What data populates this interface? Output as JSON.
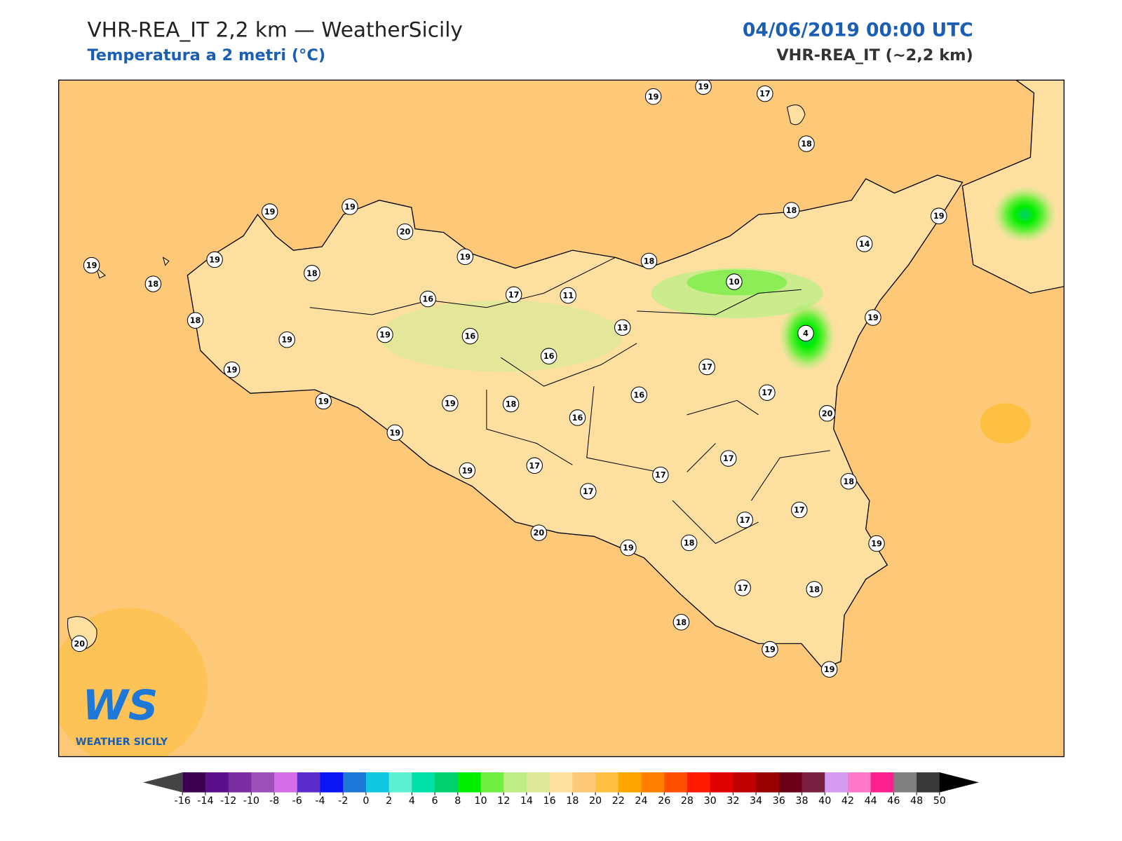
{
  "header": {
    "title": "VHR-REA_IT 2,2 km — WeatherSicily",
    "subtitle": "Temperatura a 2 metri (°C)",
    "datetime": "04/06/2019 00:00 UTC",
    "model": "VHR-REA_IT (~2,2 km)"
  },
  "logo": {
    "mark": "WS",
    "text": "WEATHER SICILY"
  },
  "stations": [
    19,
    19,
    17,
    18,
    19,
    19,
    20,
    19,
    19,
    19,
    18,
    18,
    18,
    19,
    14,
    18,
    10,
    16,
    17,
    11,
    18,
    19,
    19,
    16,
    13,
    19,
    4,
    16,
    19,
    17,
    17,
    19,
    19,
    18,
    16,
    16,
    20,
    19,
    19,
    17,
    17,
    17,
    17,
    18,
    17,
    17,
    20,
    19,
    18,
    19,
    17,
    18,
    18,
    19,
    19,
    20
  ],
  "colorbar": {
    "ticks": [
      -16,
      -14,
      -12,
      -10,
      -8,
      -6,
      -4,
      -2,
      0,
      2,
      4,
      6,
      8,
      10,
      12,
      14,
      16,
      18,
      20,
      22,
      24,
      26,
      28,
      30,
      32,
      34,
      36,
      38,
      40,
      42,
      44,
      46,
      48,
      50
    ],
    "colors": [
      "#3a004f",
      "#5c0f8a",
      "#7a2da0",
      "#9b4fb8",
      "#d46ee6",
      "#5a2ccc",
      "#0a14f5",
      "#1e78d8",
      "#10c6e0",
      "#5cf0d0",
      "#00e0a8",
      "#00d070",
      "#00ee00",
      "#70ee40",
      "#bfee88",
      "#dde898",
      "#fde0a0",
      "#fdc878",
      "#fdc040",
      "#ffa500",
      "#ff7f00",
      "#ff5000",
      "#ff1a00",
      "#e00000",
      "#c00000",
      "#980000",
      "#6c0018",
      "#7a2040",
      "#d49cf0",
      "#ff78c8",
      "#ff2090",
      "#808080",
      "#383838"
    ],
    "under": "#444444",
    "over": "#000000"
  }
}
